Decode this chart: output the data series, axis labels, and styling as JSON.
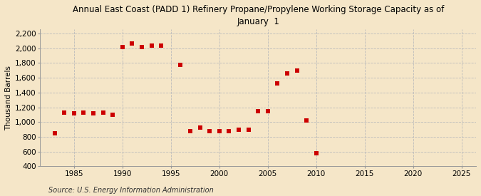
{
  "title": "Annual East Coast (PADD 1) Refinery Propane/Propylene Working Storage Capacity as of\nJanuary  1",
  "ylabel": "Thousand Barrels",
  "source": "Source: U.S. Energy Information Administration",
  "background_color": "#f5e6c8",
  "plot_bg_color": "#f5e6c8",
  "years": [
    1983,
    1984,
    1985,
    1986,
    1987,
    1988,
    1989,
    1990,
    1991,
    1992,
    1993,
    1994,
    1996,
    1997,
    1998,
    1999,
    2000,
    2001,
    2002,
    2003,
    2004,
    2005,
    2006,
    2007,
    2008,
    2009,
    2010
  ],
  "values": [
    850,
    1130,
    1120,
    1130,
    1120,
    1130,
    1100,
    2020,
    2070,
    2020,
    2040,
    2040,
    1780,
    880,
    920,
    880,
    880,
    880,
    900,
    900,
    1150,
    1150,
    1520,
    1660,
    1700,
    1020,
    580
  ],
  "marker_color": "#cc0000",
  "marker_size": 5,
  "xlim": [
    1981.5,
    2026.5
  ],
  "ylim": [
    400,
    2260
  ],
  "yticks": [
    400,
    600,
    800,
    1000,
    1200,
    1400,
    1600,
    1800,
    2000,
    2200
  ],
  "xticks": [
    1985,
    1990,
    1995,
    2000,
    2005,
    2010,
    2015,
    2020,
    2025
  ],
  "grid_color": "#bbbbbb",
  "tick_label_size": 7.5,
  "title_fontsize": 8.5,
  "ylabel_fontsize": 7.5,
  "source_fontsize": 7
}
